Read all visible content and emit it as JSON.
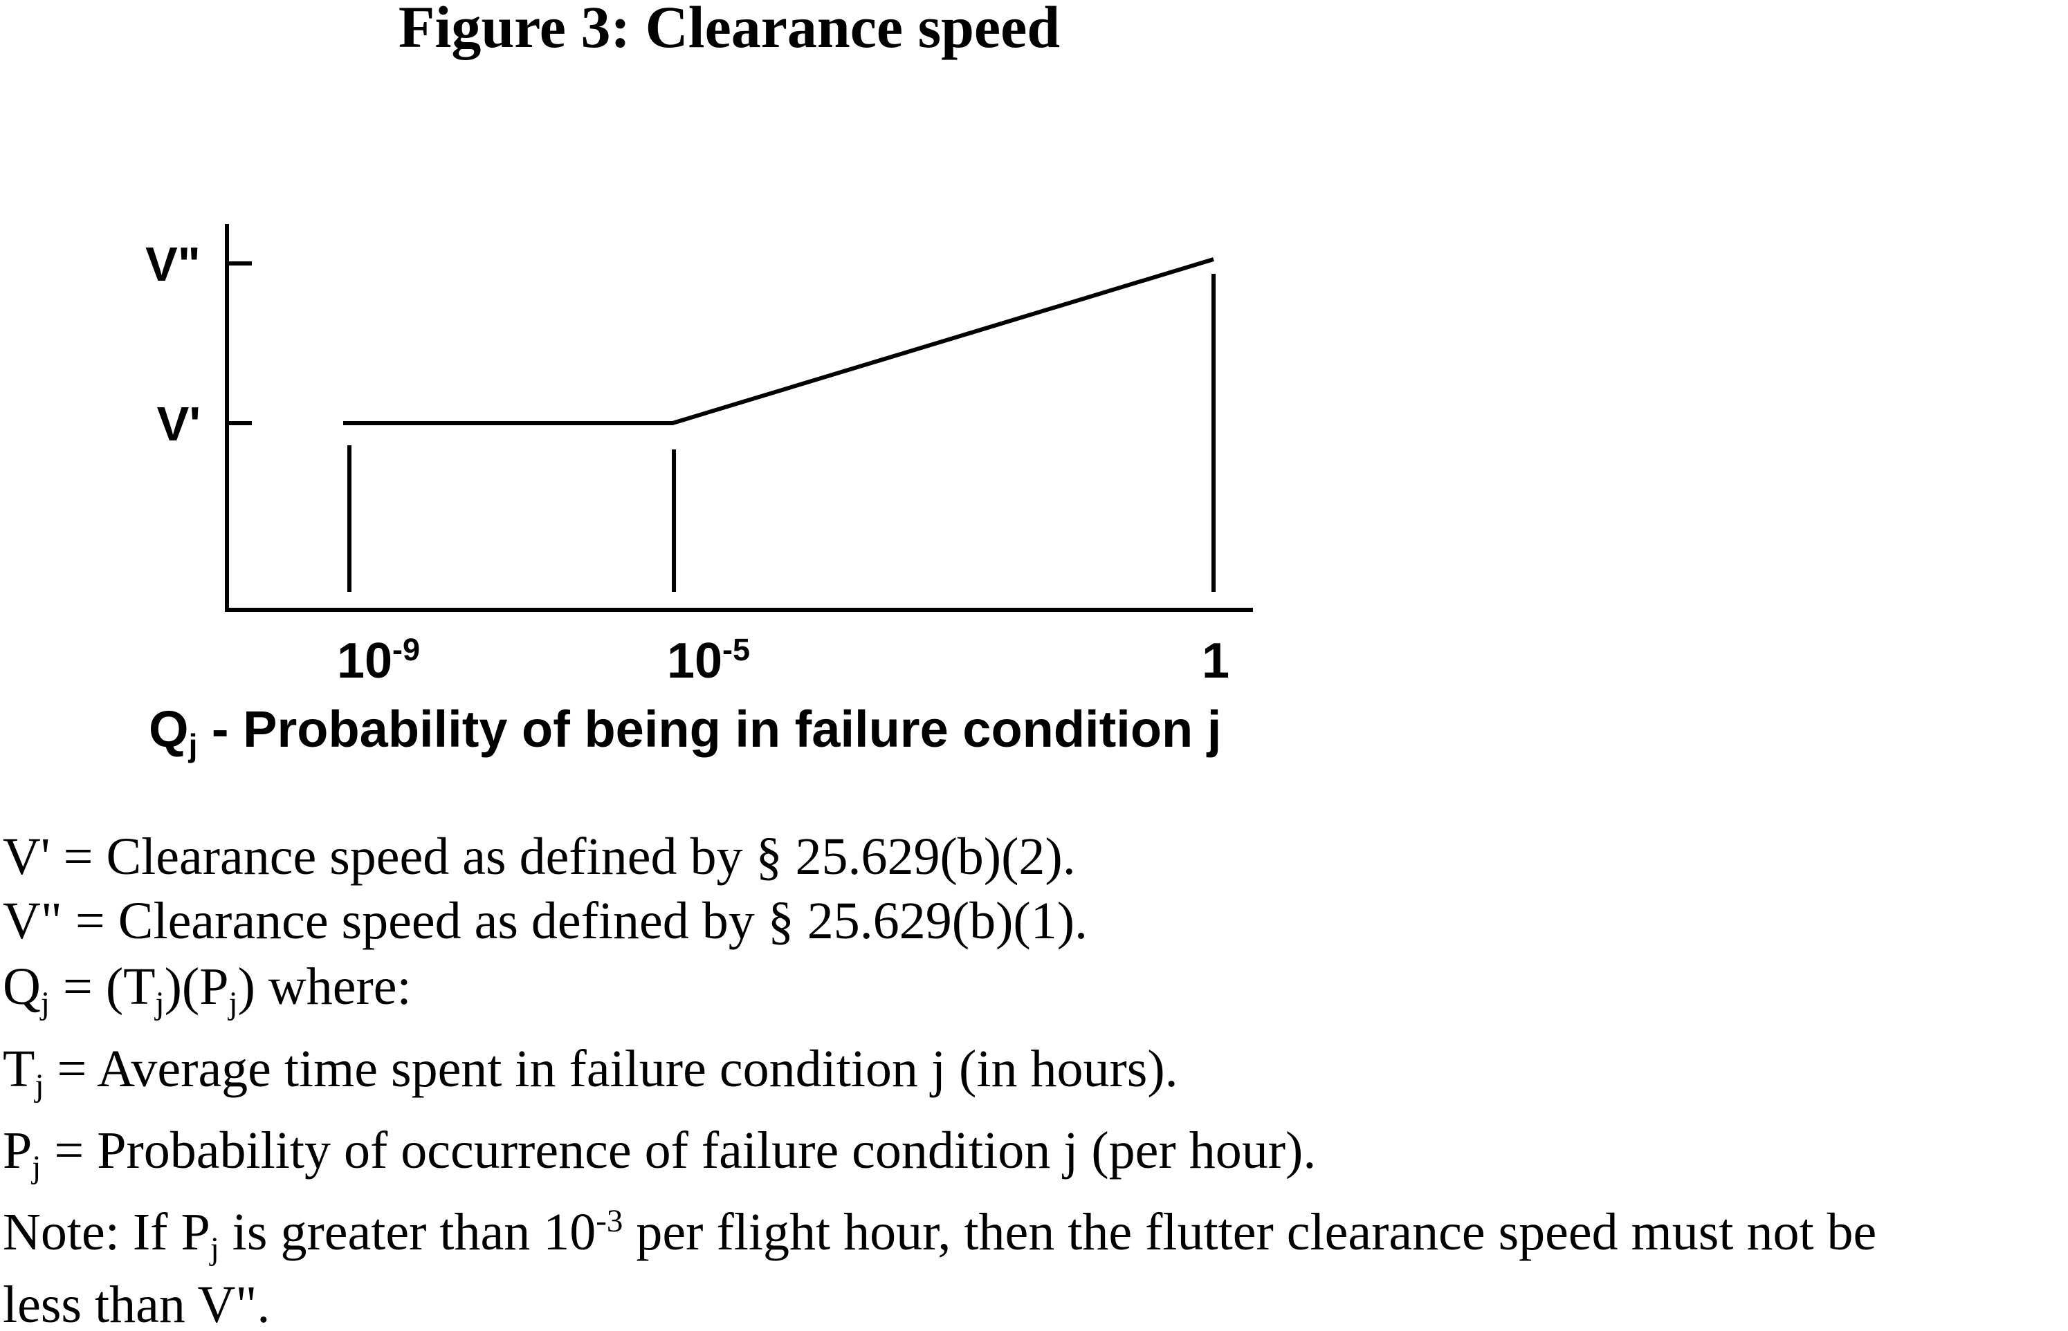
{
  "figure": {
    "title": "Figure 3: Clearance speed",
    "y_labels": [
      "V\"",
      "V'"
    ],
    "x_labels": [
      [
        {
          "t": "10"
        },
        {
          "t": "-9",
          "s": "sup"
        }
      ],
      [
        {
          "t": "10"
        },
        {
          "t": "-5",
          "s": "sup"
        }
      ],
      [
        {
          "t": "1"
        }
      ]
    ],
    "x_axis_label": [
      {
        "t": "Q"
      },
      {
        "t": "j",
        "s": "sub"
      },
      {
        "t": " - Probability of being in failure condition j"
      }
    ]
  },
  "definitions": [
    [
      {
        "t": "V' = Clearance speed as defined by § 25.629(b)(2)."
      }
    ],
    [
      {
        "t": "V\" = Clearance speed as defined by § 25.629(b)(1)."
      }
    ],
    [
      {
        "t": "Q"
      },
      {
        "t": "j",
        "s": "sub"
      },
      {
        "t": " = (T"
      },
      {
        "t": "j",
        "s": "sub"
      },
      {
        "t": ")(P"
      },
      {
        "t": "j",
        "s": "sub"
      },
      {
        "t": ") where:"
      }
    ],
    [
      {
        "t": "T"
      },
      {
        "t": "j",
        "s": "sub"
      },
      {
        "t": " = Average time spent in failure condition j (in hours)."
      }
    ],
    [
      {
        "t": "P"
      },
      {
        "t": "j",
        "s": "sub"
      },
      {
        "t": " = Probability of occurrence of failure condition j (per hour)."
      }
    ],
    [
      {
        "t": "Note: If P"
      },
      {
        "t": "j",
        "s": "sub"
      },
      {
        "t": " is greater than 10"
      },
      {
        "t": "-3",
        "s": "sup"
      },
      {
        "t": " per flight hour, then the flutter clearance speed must not be"
      }
    ],
    [
      {
        "t": "less than V\"."
      }
    ]
  ]
}
